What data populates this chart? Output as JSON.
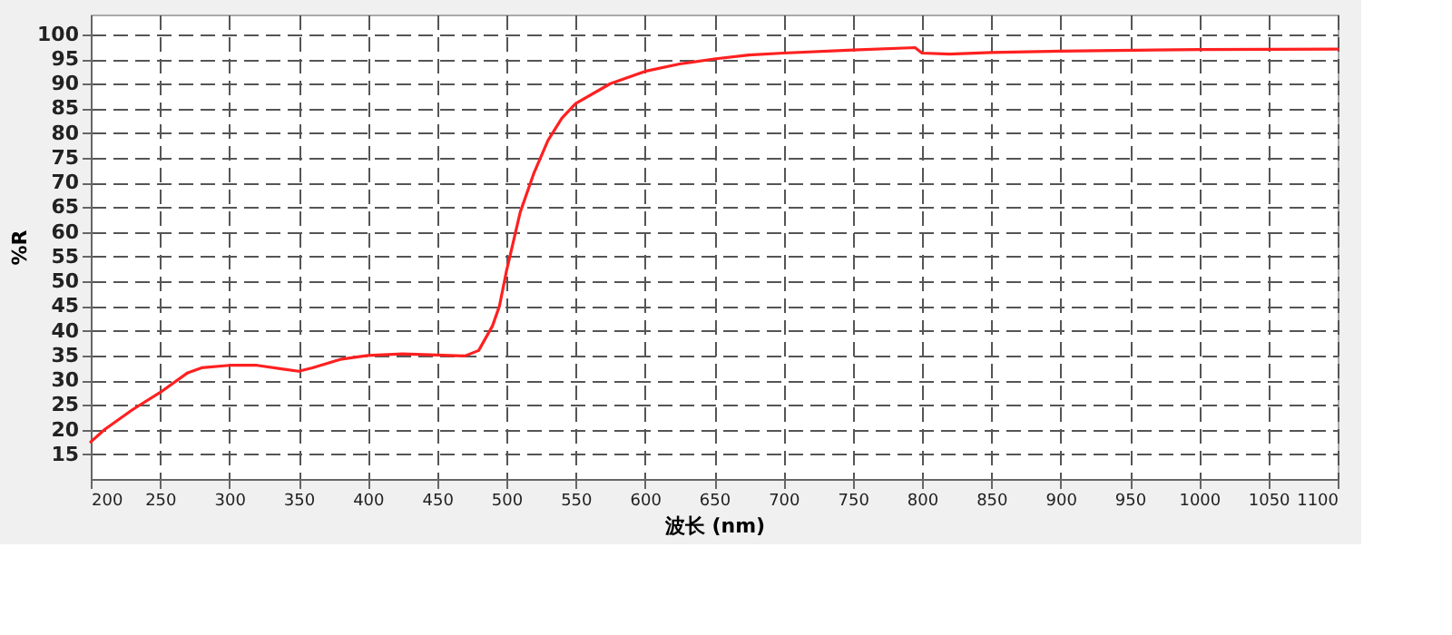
{
  "chart_data": {
    "type": "line",
    "xlabel": "波长 (nm)",
    "ylabel": "%R",
    "x": [
      200,
      210,
      230,
      250,
      270,
      280,
      300,
      320,
      340,
      350,
      360,
      380,
      400,
      425,
      450,
      470,
      480,
      490,
      495,
      500,
      505,
      510,
      520,
      530,
      540,
      550,
      575,
      600,
      625,
      650,
      675,
      700,
      750,
      795,
      800,
      820,
      850,
      900,
      1000,
      1100
    ],
    "series": [
      {
        "color": "#ff2020",
        "values": [
          17.5,
          20,
          24,
          27.5,
          31.5,
          32.5,
          33,
          33,
          32.2,
          31.8,
          32.5,
          34.2,
          35,
          35.3,
          35.1,
          34.9,
          36,
          41,
          45,
          52,
          58,
          64,
          72,
          78.5,
          83,
          86,
          90,
          92.5,
          94,
          95,
          95.8,
          96.2,
          96.8,
          97.3,
          96.2,
          96,
          96.3,
          96.6,
          96.9,
          97
        ]
      }
    ],
    "xlim": [
      200,
      1100
    ],
    "xticks": [
      200,
      250,
      300,
      350,
      400,
      450,
      500,
      550,
      600,
      650,
      700,
      750,
      800,
      850,
      900,
      950,
      1000,
      1050,
      1100
    ],
    "ylim": [
      10,
      104
    ],
    "yticks": [
      15,
      20,
      25,
      30,
      35,
      40,
      45,
      50,
      55,
      60,
      65,
      70,
      75,
      80,
      85,
      90,
      95,
      100
    ],
    "grid": true,
    "line_style": "solid",
    "marker": "none"
  }
}
